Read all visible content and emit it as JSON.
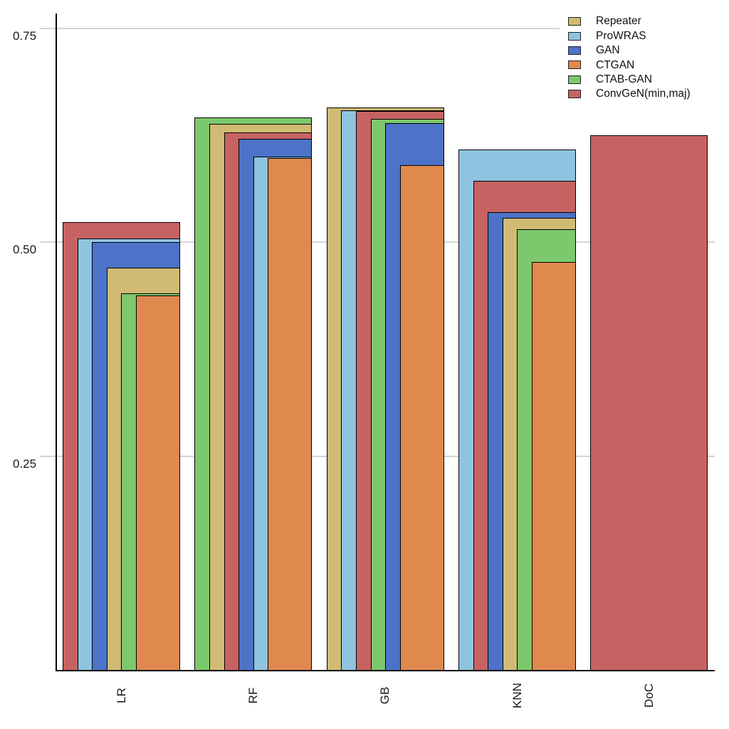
{
  "chart_data": {
    "type": "bar",
    "variant": "nested-overlapping-bars",
    "title": "",
    "xlabel": "",
    "ylabel": "",
    "categories": [
      "LR",
      "RF",
      "GB",
      "KNN",
      "DoC"
    ],
    "series": [
      {
        "name": "Repeater",
        "color": "#d1bb74",
        "values": [
          0.47,
          0.638,
          0.657,
          0.528,
          null
        ]
      },
      {
        "name": "ProWRAS",
        "color": "#8ec4df",
        "values": [
          0.504,
          0.6,
          0.654,
          0.608,
          null
        ]
      },
      {
        "name": "GAN",
        "color": "#4c73c8",
        "values": [
          0.5,
          0.621,
          0.639,
          0.535,
          null
        ]
      },
      {
        "name": "CTGAN",
        "color": "#e0894f",
        "values": [
          0.438,
          0.598,
          0.59,
          0.477,
          null
        ]
      },
      {
        "name": "CTAB-GAN",
        "color": "#7cc86c",
        "values": [
          0.44,
          0.646,
          0.644,
          0.515,
          null
        ]
      },
      {
        "name": "ConvGeN(min,maj)",
        "color": "#c66362",
        "values": [
          0.523,
          0.628,
          0.653,
          0.572,
          0.625
        ]
      }
    ],
    "yticks": [
      0.75,
      0.5,
      0.25
    ],
    "ylim": [
      0,
      0.775
    ],
    "grid": "horizontal",
    "legend_position": "top-right",
    "bar_order": "within each category bars sorted descending by value, drawn widest-to-narrowest, right-aligned"
  },
  "colors": {
    "grid": "#d4d4d4",
    "axis": "#000000",
    "tick_text": "#1a1a1a",
    "background": "#ffffff"
  }
}
